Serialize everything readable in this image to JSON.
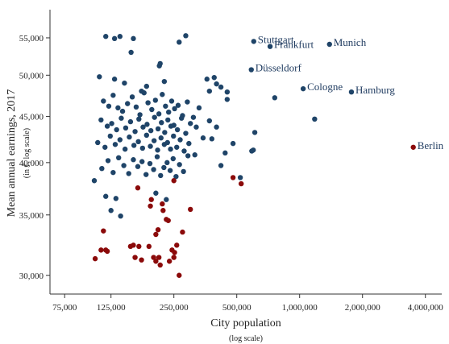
{
  "chart_data": {
    "type": "scatter",
    "x_label": "City population",
    "x_sublabel": "(log scale)",
    "y_label": "Mean annual earnings, 2017",
    "y_sublabel": "(in €, log scale)",
    "xlog": true,
    "ylog": true,
    "xlim": [
      63800,
      4790000
    ],
    "ylim": [
      28600,
      59100
    ],
    "xticks": [
      {
        "value": 75000,
        "label": "75,000"
      },
      {
        "value": 125000,
        "label": "125,000"
      },
      {
        "value": 250000,
        "label": "250,000"
      },
      {
        "value": 500000,
        "label": "500,000"
      },
      {
        "value": 1000000,
        "label": "1,000,000"
      },
      {
        "value": 2000000,
        "label": "2,000,000"
      },
      {
        "value": 4000000,
        "label": "4,000,000"
      }
    ],
    "yticks": [
      {
        "value": 30000,
        "label": "30,000"
      },
      {
        "value": 35000,
        "label": "35,000"
      },
      {
        "value": 40000,
        "label": "40,000"
      },
      {
        "value": 45000,
        "label": "45,000"
      },
      {
        "value": 50000,
        "label": "50,000"
      },
      {
        "value": 55000,
        "label": "55,000"
      }
    ],
    "series": [
      {
        "color": "#1f4468",
        "x": [
          603000,
          722000,
          1390000,
          587000,
          1040000,
          1770000,
          118000,
          130000,
          138000,
          160000,
          156000,
          285000,
          265000,
          215000,
          213000,
          110000,
          130000,
          145000,
          175000,
          185000,
          225000,
          360000,
          390000,
          400000,
          370000,
          420000,
          450000,
          760000,
          450000,
          1180000,
          600000,
          590000,
          520000,
          480000,
          400000,
          370000,
          115000,
          122000,
          128000,
          135000,
          142000,
          150000,
          158000,
          165000,
          172000,
          180000,
          188000,
          196000,
          204000,
          212000,
          220000,
          228000,
          236000,
          244000,
          252000,
          262000,
          275000,
          290000,
          310000,
          330000,
          112000,
          120000,
          126000,
          133000,
          140000,
          147000,
          155000,
          163000,
          170000,
          178000,
          186000,
          194000,
          202000,
          210000,
          218000,
          226000,
          234000,
          242000,
          250000,
          260000,
          272000,
          285000,
          300000,
          320000,
          345000,
          108000,
          117000,
          124000,
          131000,
          138000,
          146000,
          153000,
          161000,
          169000,
          177000,
          185000,
          193000,
          201000,
          209000,
          217000,
          225000,
          233000,
          241000,
          249000,
          258000,
          268000,
          280000,
          295000,
          315000,
          104000,
          113000,
          121000,
          128000,
          136000,
          144000,
          152000,
          160000,
          168000,
          176000,
          184000,
          192000,
          200000,
          208000,
          216000,
          224000,
          232000,
          240000,
          248000,
          256000,
          266000,
          278000,
          292000,
          380000,
          420000,
          440000,
          610000,
          118000,
          125000,
          132000,
          139000,
          205000,
          230000
        ],
        "values": [
          54500,
          53800,
          54100,
          50700,
          48300,
          47900,
          55200,
          54900,
          55200,
          54900,
          53000,
          55300,
          54400,
          51500,
          51200,
          49800,
          49500,
          49000,
          48000,
          48600,
          49200,
          49500,
          49700,
          48900,
          48000,
          48500,
          47900,
          47200,
          47000,
          44700,
          41300,
          41200,
          38500,
          42000,
          43800,
          44500,
          46800,
          46200,
          47500,
          46000,
          45600,
          46500,
          47300,
          46100,
          45200,
          47800,
          46600,
          45800,
          46900,
          45300,
          47600,
          46200,
          45500,
          46800,
          45900,
          46300,
          45100,
          46700,
          44900,
          46000,
          44600,
          43900,
          44200,
          43500,
          44800,
          43700,
          44400,
          43300,
          44700,
          43800,
          44100,
          43400,
          44900,
          43600,
          44300,
          43200,
          44600,
          43900,
          44000,
          43500,
          44800,
          43100,
          44200,
          43800,
          42600,
          42100,
          41600,
          42800,
          41900,
          42400,
          41400,
          42700,
          41800,
          42200,
          41500,
          42900,
          41700,
          42300,
          41300,
          42600,
          41900,
          42100,
          41400,
          42800,
          41600,
          42400,
          41200,
          42000,
          40800,
          38200,
          39400,
          40200,
          39000,
          40500,
          39700,
          38900,
          40300,
          39600,
          40100,
          38800,
          39900,
          39300,
          40600,
          38700,
          39500,
          40000,
          39200,
          40400,
          38600,
          39800,
          39100,
          40700,
          42500,
          39700,
          41000,
          43200,
          36700,
          35400,
          36500,
          34900,
          37000,
          36400
        ],
        "labels": [
          "Stuttgart",
          "Frankfurt",
          "Munich",
          "Düsseldorf",
          "Cologne",
          "Hamburg",
          null,
          null,
          null,
          null,
          null,
          null,
          null,
          null,
          null,
          null,
          null,
          null,
          null,
          null,
          null,
          null,
          null,
          null,
          null,
          null,
          null,
          null,
          null,
          null,
          null,
          null,
          null,
          null,
          null,
          null,
          null,
          null,
          null,
          null,
          null,
          null,
          null,
          null,
          null,
          null,
          null,
          null,
          null,
          null,
          null,
          null,
          null,
          null,
          null,
          null,
          null,
          null,
          null,
          null,
          null,
          null,
          null,
          null,
          null,
          null,
          null,
          null,
          null,
          null,
          null,
          null,
          null,
          null,
          null,
          null,
          null,
          null,
          null,
          null,
          null,
          null,
          null,
          null,
          null,
          null,
          null,
          null,
          null,
          null,
          null,
          null,
          null,
          null,
          null,
          null,
          null,
          null,
          null,
          null,
          null,
          null,
          null,
          null,
          null,
          null,
          null,
          null,
          null,
          null,
          null,
          null,
          null,
          null,
          null,
          null,
          null,
          null,
          null,
          null,
          null,
          null,
          null,
          null,
          null,
          null,
          null,
          null,
          null,
          null,
          null,
          null,
          null,
          null,
          null,
          null,
          null,
          null,
          null,
          null,
          null
        ]
      },
      {
        "color": "#8b0a0a",
        "x": [
          3500000,
          105000,
          112000,
          115000,
          120000,
          118000,
          155000,
          160000,
          163000,
          170000,
          175000,
          168000,
          190000,
          193000,
          195000,
          200000,
          205000,
          210000,
          205000,
          212000,
          220000,
          222000,
          230000,
          235000,
          238000,
          245000,
          250000,
          252000,
          258000,
          265000,
          275000,
          300000,
          215000,
          480000,
          525000,
          250000
        ],
        "values": [
          41600,
          31300,
          32000,
          33600,
          31900,
          32000,
          32300,
          32400,
          31400,
          32300,
          31200,
          37500,
          32300,
          35800,
          36400,
          31400,
          33300,
          33700,
          31100,
          31400,
          36000,
          35400,
          34600,
          34500,
          31100,
          32000,
          31400,
          31800,
          32400,
          30000,
          33500,
          35500,
          30800,
          38500,
          37900,
          38200
        ],
        "labels": [
          "Berlin",
          null,
          null,
          null,
          null,
          null,
          null,
          null,
          null,
          null,
          null,
          null,
          null,
          null,
          null,
          null,
          null,
          null,
          null,
          null,
          null,
          null,
          null,
          null,
          null,
          null,
          null,
          null,
          null,
          null,
          null,
          null,
          null,
          null,
          null,
          null
        ]
      }
    ]
  }
}
